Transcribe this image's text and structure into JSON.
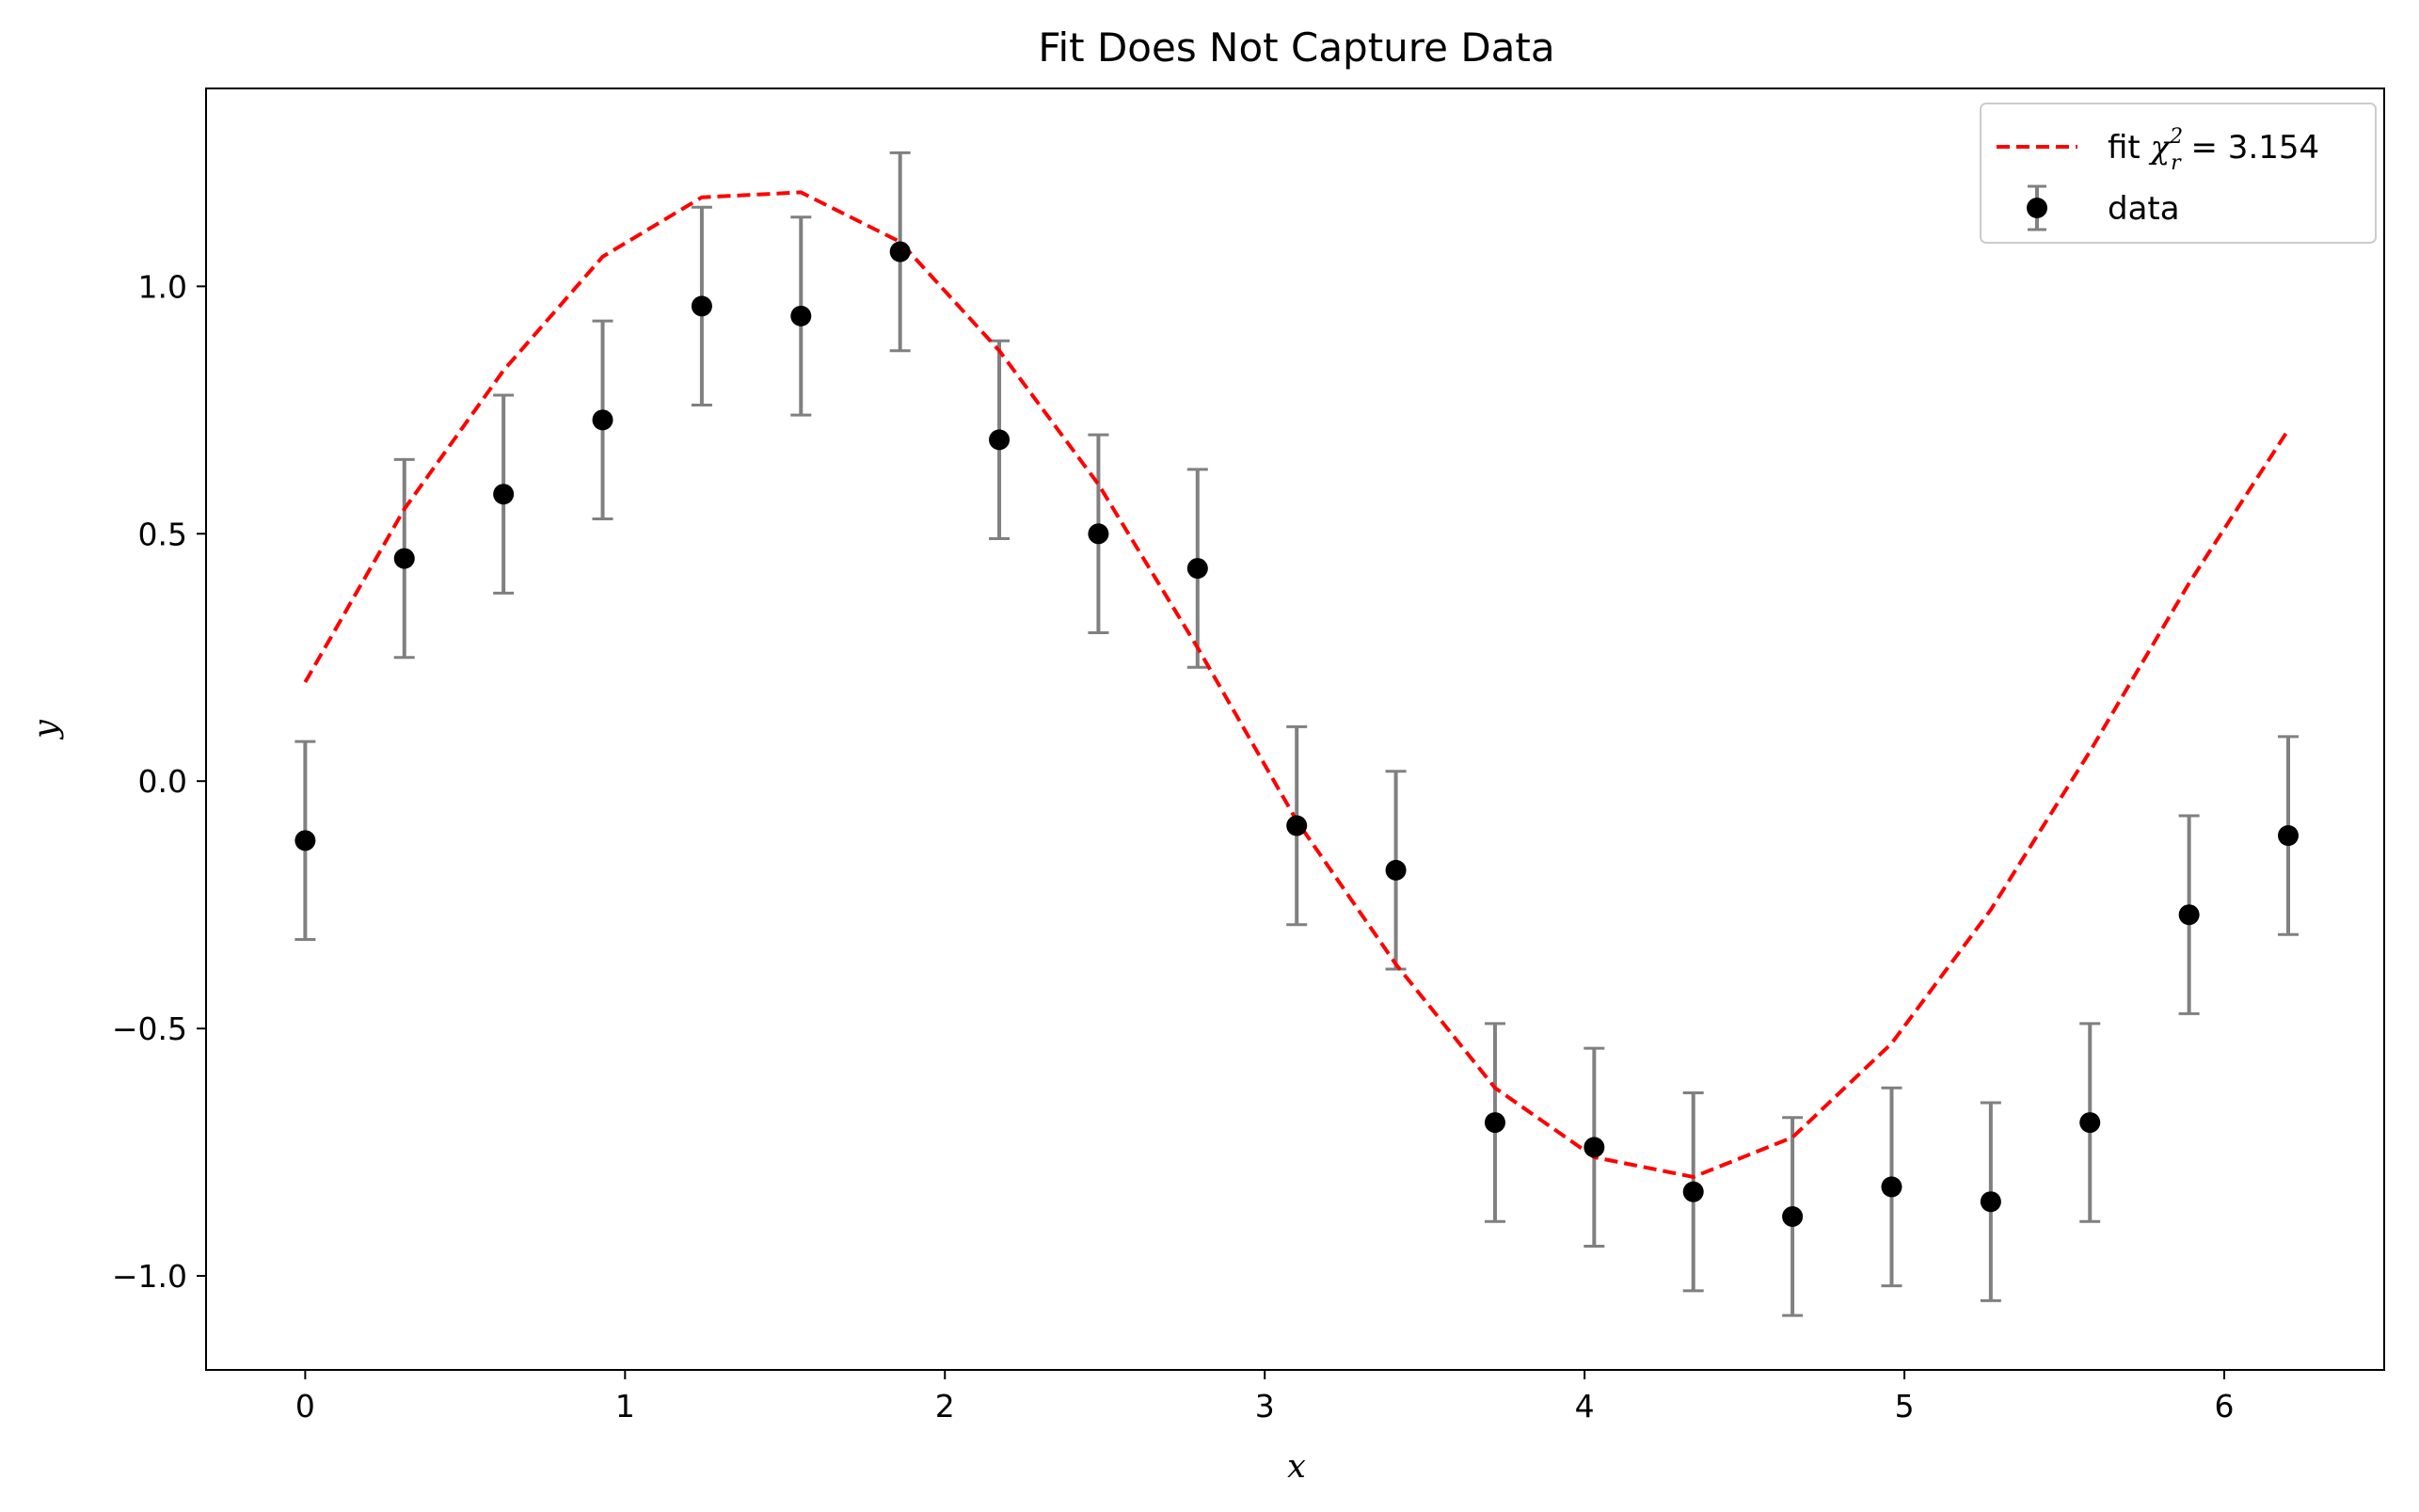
{
  "chart_data": {
    "type": "scatter",
    "title": "Fit Does Not Capture Data",
    "xlabel": "x",
    "ylabel": "y",
    "xlim": [
      -0.31,
      6.5
    ],
    "ylim": [
      -1.19,
      1.4
    ],
    "xticks": [
      0,
      1,
      2,
      3,
      4,
      5,
      6
    ],
    "xtick_labels": [
      "0",
      "1",
      "2",
      "3",
      "4",
      "5",
      "6"
    ],
    "yticks": [
      -1.0,
      -0.5,
      0.0,
      0.5,
      1.0
    ],
    "ytick_labels": [
      "−1.0",
      "−0.5",
      "0.0",
      "0.5",
      "1.0"
    ],
    "grid": false,
    "legend_position": "top-right",
    "legend": {
      "fit_prefix": "fit ",
      "fit_symbol": "χ",
      "fit_subscript": "r",
      "fit_superscript": "2",
      "fit_value": " = 3.154",
      "data_label": "data"
    },
    "colors": {
      "fit": "#ff0000",
      "data": "#000000",
      "errorbar": "#808080"
    },
    "series": [
      {
        "name": "data",
        "kind": "errorbar",
        "x": [
          0.0,
          0.31,
          0.62,
          0.93,
          1.24,
          1.55,
          1.86,
          2.17,
          2.48,
          2.79,
          3.1,
          3.41,
          3.72,
          4.03,
          4.34,
          4.65,
          4.96,
          5.27,
          5.58,
          5.89,
          6.2
        ],
        "y": [
          -0.12,
          0.45,
          0.58,
          0.73,
          0.96,
          0.94,
          1.07,
          0.69,
          0.5,
          0.43,
          -0.09,
          -0.18,
          -0.69,
          -0.74,
          -0.83,
          -0.88,
          -0.82,
          -0.85,
          -0.69,
          -0.27,
          -0.11
        ],
        "yerr": 0.2
      },
      {
        "name": "fit",
        "kind": "line",
        "style": "dashed",
        "x": [
          0.0,
          0.31,
          0.62,
          0.93,
          1.24,
          1.55,
          1.86,
          2.17,
          2.48,
          2.79,
          3.1,
          3.41,
          3.72,
          4.03,
          4.34,
          4.65,
          4.96,
          5.27,
          5.58,
          5.89,
          6.2
        ],
        "y": [
          0.2,
          0.55,
          0.83,
          1.06,
          1.18,
          1.19,
          1.09,
          0.87,
          0.6,
          0.27,
          -0.08,
          -0.37,
          -0.62,
          -0.76,
          -0.8,
          -0.72,
          -0.53,
          -0.26,
          0.06,
          0.4,
          0.71
        ]
      }
    ]
  }
}
